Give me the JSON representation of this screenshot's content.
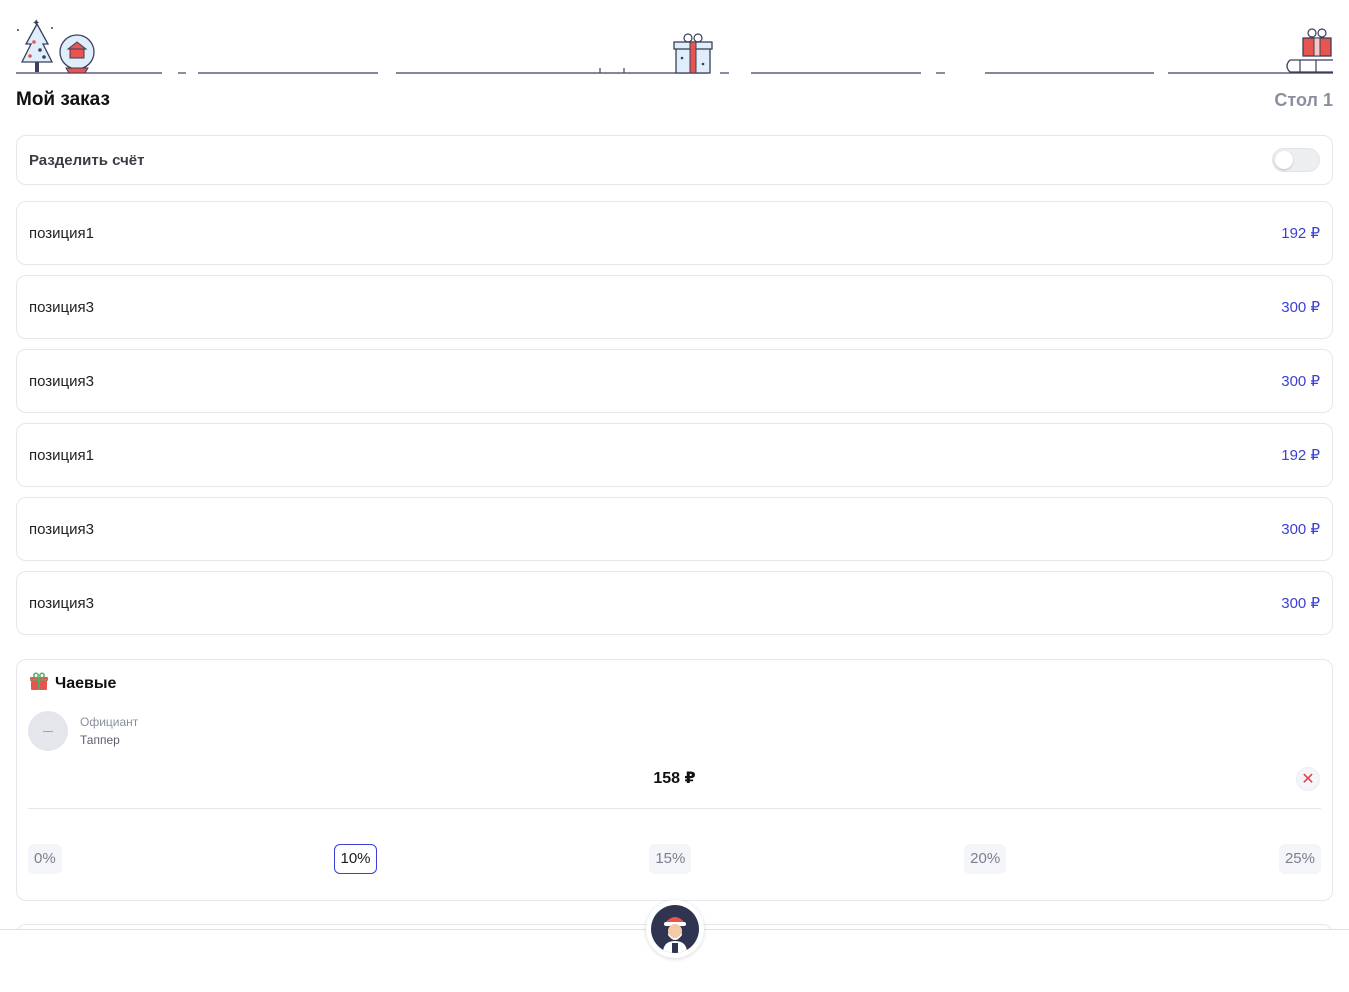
{
  "header": {
    "title": "Мой заказ",
    "table_label": "Стол 1"
  },
  "split": {
    "label": "Разделить счёт",
    "enabled": false
  },
  "items": [
    {
      "name": "позиция1",
      "price": "192 ₽"
    },
    {
      "name": "позиция3",
      "price": "300 ₽"
    },
    {
      "name": "позиция3",
      "price": "300 ₽"
    },
    {
      "name": "позиция1",
      "price": "192 ₽"
    },
    {
      "name": "позиция3",
      "price": "300 ₽"
    },
    {
      "name": "позиция3",
      "price": "300 ₽"
    }
  ],
  "tips": {
    "title": "Чаевые",
    "icon": "gift-icon",
    "waiter": {
      "role": "Официант",
      "name": "Таппер"
    },
    "amount": "158 ₽",
    "percents": [
      "0%",
      "10%",
      "15%",
      "20%",
      "25%"
    ],
    "selected": "10%"
  },
  "colors": {
    "accent": "#3b3fd8",
    "muted": "#8a8f9e",
    "danger": "#e0414a"
  }
}
